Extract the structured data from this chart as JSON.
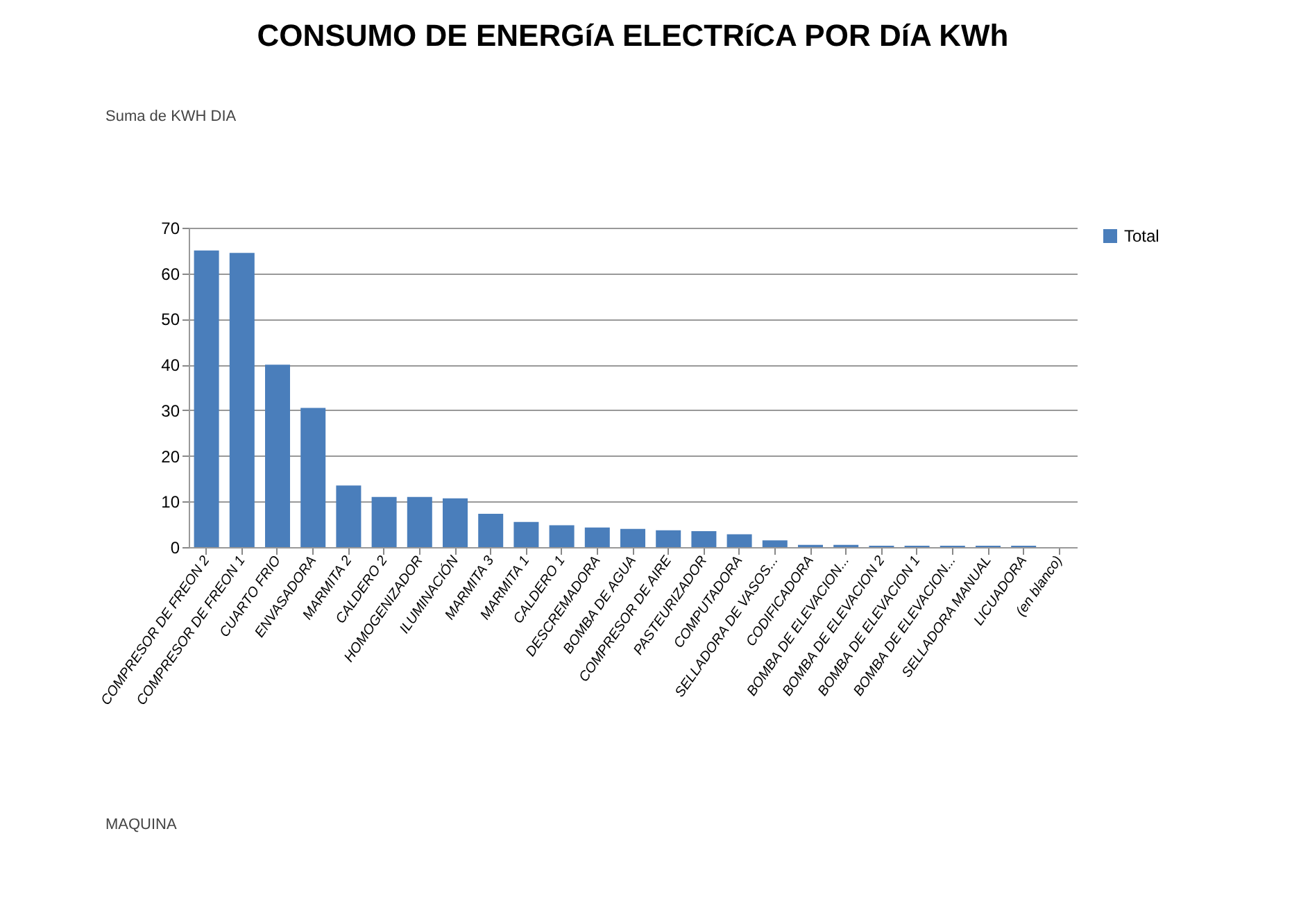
{
  "chart_data": {
    "type": "bar",
    "title": "CONSUMO DE ENERGíA ELECTRíCA POR DíA KWh",
    "categories": [
      "COMPRESOR DE FREON 2",
      "COMPRESOR DE FREON 1",
      "CUARTO FRIO",
      "ENVASADORA",
      "MARMITA 2",
      "CALDERO 2",
      "HOMOGENIZADOR",
      "ILUMINACIÓN",
      "MARMITA 3",
      "MARMITA 1",
      "CALDERO 1",
      "DESCREMADORA",
      "BOMBA DE AGUA",
      "COMPRESOR DE AIRE",
      "PASTEURIZADOR",
      "COMPUTADORA",
      "SELLADORA DE VASOS...",
      "CODIFICADORA",
      "BOMBA DE ELEVACION...",
      "BOMBA DE ELEVACION 2",
      "BOMBA DE ELEVACION 1",
      "BOMBA DE ELEVACION...",
      "SELLADORA MANUAL",
      "LICUADORA",
      "(en blanco)"
    ],
    "series": [
      {
        "name": "Total",
        "color": "#4a7ebb",
        "values": [
          65,
          64.5,
          40,
          30.5,
          13.5,
          11,
          11,
          10.7,
          7.3,
          5.5,
          4.8,
          4.3,
          4,
          3.7,
          3.5,
          2.8,
          1.5,
          0.5,
          0.5,
          0.3,
          0.3,
          0.3,
          0.3,
          0.3,
          null
        ]
      }
    ],
    "ylim": [
      0,
      70
    ],
    "yticks": [
      0,
      10,
      20,
      30,
      40,
      50,
      60,
      70
    ],
    "grid": "y",
    "legend": "right",
    "annotations": [
      "Suma de KWH DIA",
      "MAQUINA"
    ]
  }
}
